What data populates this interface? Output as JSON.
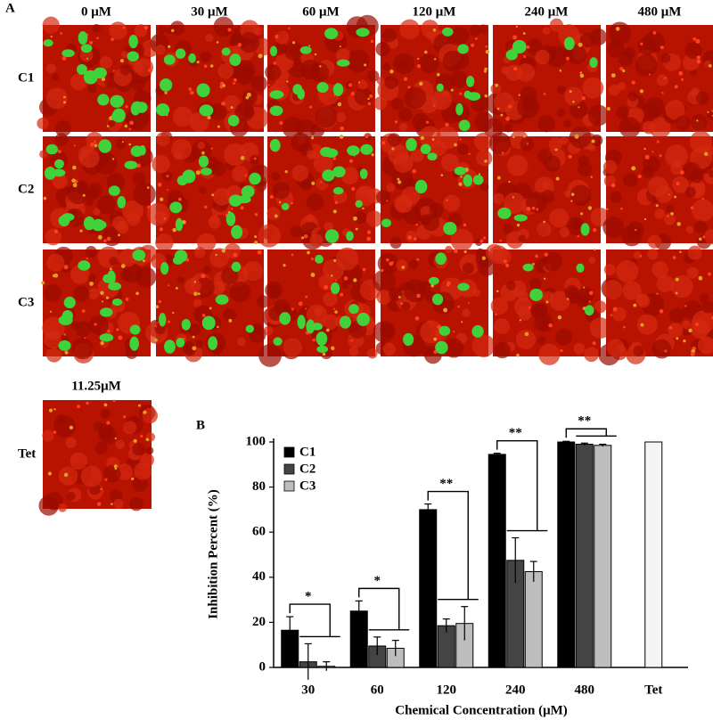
{
  "panel_a": {
    "label": "A",
    "columns": [
      "0 μM",
      "30 μM",
      "60 μM",
      "120 μM",
      "240 μM",
      "480 μM"
    ],
    "rows": [
      "C1",
      "C2",
      "C3"
    ],
    "control_concentration": "11.25μM",
    "control_label": "Tet"
  },
  "chart_data": {
    "type": "bar",
    "panel_label": "B",
    "xlabel": "Chemical Concentration (μM)",
    "ylabel": "Inhibition Percent (%)",
    "categories": [
      "30",
      "60",
      "120",
      "240",
      "480",
      "Tet"
    ],
    "series": [
      {
        "name": "C1",
        "color": "#000000",
        "values": [
          16.5,
          25,
          70,
          94.5,
          100,
          null
        ],
        "errors": [
          6,
          4.5,
          2.5,
          0.5,
          0.3,
          null
        ]
      },
      {
        "name": "C2",
        "color": "#444444",
        "values": [
          2.5,
          9.5,
          18.5,
          47.5,
          99,
          null
        ],
        "errors": [
          8,
          4,
          3,
          10,
          0.5,
          null
        ]
      },
      {
        "name": "C3",
        "color": "#bdbdbd",
        "values": [
          0.5,
          8.5,
          19.5,
          42.5,
          98.5,
          null
        ],
        "errors": [
          2,
          3.5,
          7.5,
          4.5,
          0.5,
          null
        ]
      },
      {
        "color": "#f4f4f4",
        "values": [
          null,
          null,
          null,
          null,
          null,
          100
        ]
      }
    ],
    "significance": [
      "*",
      "*",
      "**",
      "**",
      "**",
      null
    ],
    "ylim": [
      0,
      100
    ],
    "yticks": [
      0,
      20,
      40,
      60,
      80,
      100
    ],
    "legend": "upper left"
  }
}
